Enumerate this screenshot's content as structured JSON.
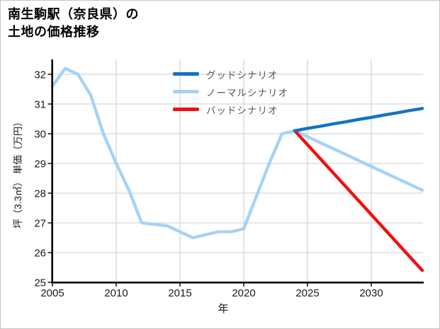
{
  "header": {
    "title_line1": "南生駒駅（奈良県）の",
    "title_line2": "土地の価格推移"
  },
  "chart_data": {
    "type": "line",
    "title": "南生駒駅（奈良県）の土地の価格推移",
    "xlabel": "年",
    "ylabel": "坪（3.3㎡） 単価（万円）",
    "xlim": [
      2005,
      2034.1
    ],
    "ylim": [
      25,
      32.5
    ],
    "xticks": [
      2005,
      2010,
      2015,
      2020,
      2025,
      2030
    ],
    "yticks": [
      25,
      26,
      27,
      28,
      29,
      30,
      31,
      32
    ],
    "grid": true,
    "legend": {
      "position": "upper-center",
      "entries": [
        "グッドシナリオ",
        "ノーマルシナリオ",
        "バッドシナリオ"
      ]
    },
    "series": [
      {
        "name": "グッドシナリオ",
        "color": "#1273c5",
        "x": [
          2024,
          2025,
          2026,
          2027,
          2028,
          2029,
          2030,
          2031,
          2032,
          2033,
          2034
        ],
        "values": [
          30.1,
          30.18,
          30.25,
          30.33,
          30.4,
          30.48,
          30.55,
          30.63,
          30.7,
          30.78,
          30.85
        ]
      },
      {
        "name": "ノーマルシナリオ",
        "color": "#a6d2f5",
        "x": [
          2005,
          2006,
          2007,
          2008,
          2009,
          2010,
          2011,
          2012,
          2013,
          2014,
          2015,
          2016,
          2017,
          2018,
          2019,
          2020,
          2021,
          2022,
          2023,
          2024,
          2025,
          2026,
          2027,
          2028,
          2029,
          2030,
          2031,
          2032,
          2033,
          2034
        ],
        "values": [
          31.6,
          32.2,
          32.0,
          31.3,
          30.0,
          29.0,
          28.1,
          27.0,
          26.95,
          26.9,
          26.7,
          26.5,
          26.6,
          26.7,
          26.7,
          26.8,
          27.9,
          29.0,
          30.0,
          30.1,
          29.9,
          29.7,
          29.5,
          29.3,
          29.1,
          28.9,
          28.7,
          28.5,
          28.3,
          28.1
        ]
      },
      {
        "name": "バッドシナリオ",
        "color": "#f40d0d",
        "x": [
          2024,
          2025,
          2026,
          2027,
          2028,
          2029,
          2030,
          2031,
          2032,
          2033,
          2034
        ],
        "values": [
          30.1,
          29.63,
          29.16,
          28.69,
          28.22,
          27.75,
          27.28,
          26.81,
          26.34,
          25.87,
          25.4
        ]
      }
    ]
  },
  "colors": {
    "grid": "#d6d6d6",
    "axis": "#000000",
    "tick_label": "#1a1a1a",
    "legend_text": "#555555",
    "background": "#ffffff",
    "border": "#c6c6c6"
  }
}
